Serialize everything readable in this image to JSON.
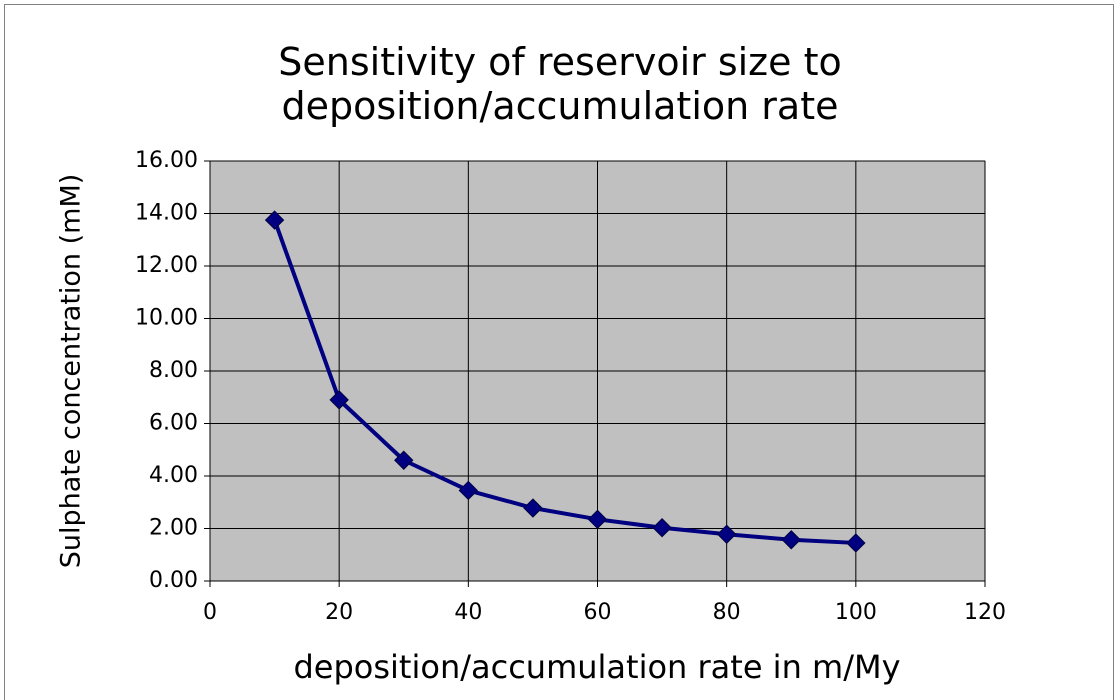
{
  "chart_data": {
    "type": "line",
    "title": "Sensitivity of reservoir size to deposition/accumulation rate",
    "x_label": "deposition/accumulation rate in m/My",
    "y_label": "Sulphate concentration (mM)",
    "x": [
      10,
      20,
      30,
      40,
      50,
      60,
      70,
      80,
      90,
      100
    ],
    "series": [
      {
        "color": "#000080",
        "values": [
          13.75,
          6.9,
          4.6,
          3.45,
          2.78,
          2.35,
          2.03,
          1.78,
          1.57,
          1.45
        ]
      }
    ],
    "xlim": [
      0,
      120
    ],
    "xticks": [
      0,
      20,
      40,
      60,
      80,
      100,
      120
    ],
    "ylim": [
      0,
      16
    ],
    "yticks": [
      {
        "value": 0,
        "label": "0.00"
      },
      {
        "value": 2,
        "label": "2.00"
      },
      {
        "value": 4,
        "label": "4.00"
      },
      {
        "value": 6,
        "label": "6.00"
      },
      {
        "value": 8,
        "label": "8.00"
      },
      {
        "value": 10,
        "label": "10.00"
      },
      {
        "value": 12,
        "label": "12.00"
      },
      {
        "value": 14,
        "label": "14.00"
      },
      {
        "value": 16,
        "label": "16.00"
      }
    ],
    "grid": true,
    "plot_background": "#c0c0c0"
  }
}
